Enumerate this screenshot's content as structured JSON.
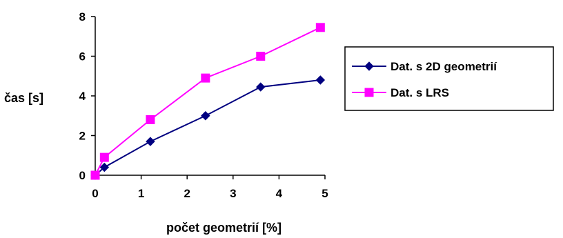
{
  "chart_data": {
    "type": "line",
    "title": "",
    "xlabel": "počet geometrií [%]",
    "ylabel": "čas [s]",
    "xlim": [
      0,
      5
    ],
    "ylim": [
      0,
      8
    ],
    "xticks": [
      "0",
      "1",
      "2",
      "3",
      "4",
      "5"
    ],
    "yticks": [
      "0",
      "2",
      "4",
      "6",
      "8"
    ],
    "grid": false,
    "legend_position": "right",
    "series": [
      {
        "name": "Dat. s 2D geometrií",
        "color": "#000080",
        "marker": "diamond",
        "x": [
          0,
          0.2,
          1.2,
          2.4,
          3.6,
          4.9
        ],
        "y": [
          0,
          0.4,
          1.7,
          3.0,
          4.45,
          4.8
        ]
      },
      {
        "name": "Dat. s LRS",
        "color": "#ff00ff",
        "marker": "square",
        "x": [
          0,
          0.2,
          1.2,
          2.4,
          3.6,
          4.9
        ],
        "y": [
          0,
          0.9,
          2.8,
          4.9,
          6.0,
          7.45
        ]
      }
    ]
  }
}
